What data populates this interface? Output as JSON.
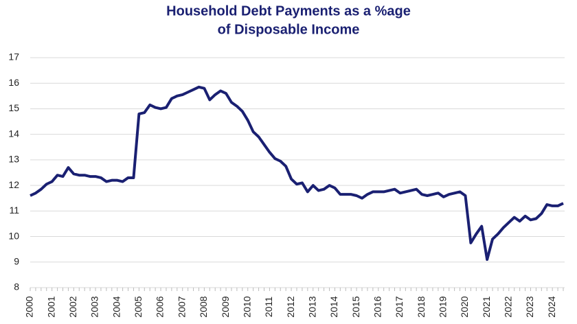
{
  "chart_data": {
    "type": "line",
    "title": [
      "Household Debt Payments as a %age",
      "of Disposable Income"
    ],
    "categories": [
      "2000",
      null,
      null,
      null,
      "2001",
      null,
      null,
      null,
      "2002",
      null,
      null,
      null,
      "2003",
      null,
      null,
      null,
      "2004",
      null,
      null,
      null,
      "2005",
      null,
      null,
      null,
      "2006",
      null,
      null,
      null,
      "2007",
      null,
      null,
      null,
      "2008",
      null,
      null,
      null,
      "2009",
      null,
      null,
      null,
      "2010",
      null,
      null,
      null,
      "2011",
      null,
      null,
      null,
      "2012",
      null,
      null,
      null,
      "2013",
      null,
      null,
      null,
      "2014",
      null,
      null,
      null,
      "2015",
      null,
      null,
      null,
      "2016",
      null,
      null,
      null,
      "2017",
      null,
      null,
      null,
      "2018",
      null,
      null,
      null,
      "2019",
      null,
      null,
      null,
      "2020",
      null,
      null,
      null,
      "2021",
      null,
      null,
      null,
      "2022",
      null,
      null,
      null,
      "2023",
      null,
      null,
      null,
      "2024",
      null,
      null
    ],
    "values": [
      11.6,
      11.7,
      11.85,
      12.05,
      12.15,
      12.4,
      12.35,
      12.7,
      12.45,
      12.4,
      12.4,
      12.35,
      12.35,
      12.3,
      12.15,
      12.2,
      12.2,
      12.15,
      12.3,
      12.3,
      14.8,
      14.85,
      15.15,
      15.05,
      15.0,
      15.05,
      15.4,
      15.5,
      15.55,
      15.65,
      15.75,
      15.85,
      15.8,
      15.35,
      15.55,
      15.7,
      15.6,
      15.25,
      15.1,
      14.9,
      14.55,
      14.1,
      13.9,
      13.6,
      13.3,
      13.05,
      12.95,
      12.75,
      12.25,
      12.05,
      12.1,
      11.75,
      12.0,
      11.8,
      11.85,
      12.0,
      11.9,
      11.65,
      11.65,
      11.65,
      11.6,
      11.5,
      11.65,
      11.75,
      11.75,
      11.75,
      11.8,
      11.85,
      11.7,
      11.75,
      11.8,
      11.85,
      11.65,
      11.6,
      11.65,
      11.7,
      11.55,
      11.65,
      11.7,
      11.75,
      11.6,
      9.75,
      10.1,
      10.4,
      9.1,
      9.9,
      10.1,
      10.35,
      10.55,
      10.75,
      10.6,
      10.8,
      10.65,
      10.7,
      10.9,
      11.25,
      11.2,
      11.2,
      11.3
    ],
    "color": "#1a2072",
    "ylim": [
      8,
      17
    ],
    "yticks": [
      8,
      9,
      10,
      11,
      12,
      13,
      14,
      15,
      16,
      17
    ],
    "grid": true
  }
}
